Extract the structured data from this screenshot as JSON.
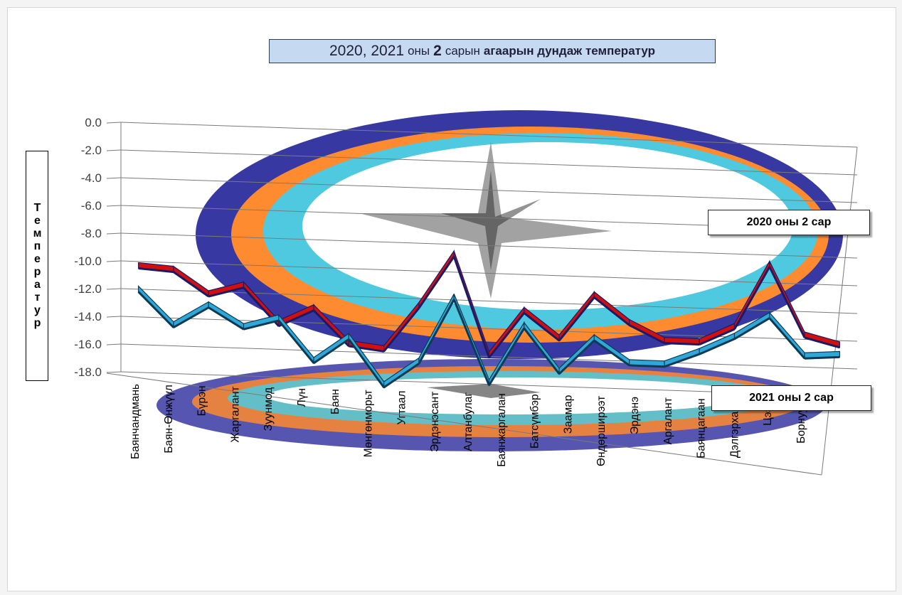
{
  "chart_data": {
    "type": "line",
    "title_parts": [
      "2020, 2021",
      "оны",
      "2",
      "сарын",
      "агаарын дундаж температур"
    ],
    "ylabel": "Температур",
    "ylim": [
      -18.0,
      0.0
    ],
    "ytick_labels": [
      "0.0",
      "-2.0",
      "-4.0",
      "-6.0",
      "-8.0",
      "-10.0",
      "-12.0",
      "-14.0",
      "-16.0",
      "-18.0"
    ],
    "grid": true,
    "categories": [
      "Баянчандмань",
      "Баян-Өнжүүл",
      "Бүрэн",
      "Жаргалант",
      "Зуунмод",
      "Лүн",
      "Баян",
      "Мөнгөнморьт",
      "Угтаал",
      "Эрдэнэсант",
      "Алтанбулаг",
      "Баянжаргалан",
      "Батсүмбэр",
      "Заамар",
      "Өндөрширээт",
      "Эрдэнэ",
      "Аргалант",
      "Баянцагаан",
      "Дэлгэрхаан",
      "Цээл",
      "Борнуур"
    ],
    "series": [
      {
        "name": "2020 оны 2 сар",
        "color": "#c00000",
        "values": [
          -10.3,
          -10.5,
          -12.2,
          -11.5,
          -14.2,
          -13.0,
          -15.5,
          -15.8,
          -12.6,
          -8.8,
          -16.0,
          -12.7,
          -14.6,
          -11.4,
          -13.3,
          -14.5,
          -14.5,
          -13.3,
          -8.7,
          -13.7,
          -14.3
        ]
      },
      {
        "name": "2021 оны 2 сар",
        "color": "#31a6d6",
        "values": [
          -12.0,
          -14.5,
          -13.0,
          -14.5,
          -13.8,
          -16.8,
          -15.0,
          -18.4,
          -16.6,
          -11.9,
          -18.0,
          -13.8,
          -17.0,
          -14.5,
          -16.2,
          -16.2,
          -15.2,
          -14.0,
          -12.4,
          -15.2,
          -15.0
        ]
      }
    ],
    "legend_placement": "right"
  }
}
